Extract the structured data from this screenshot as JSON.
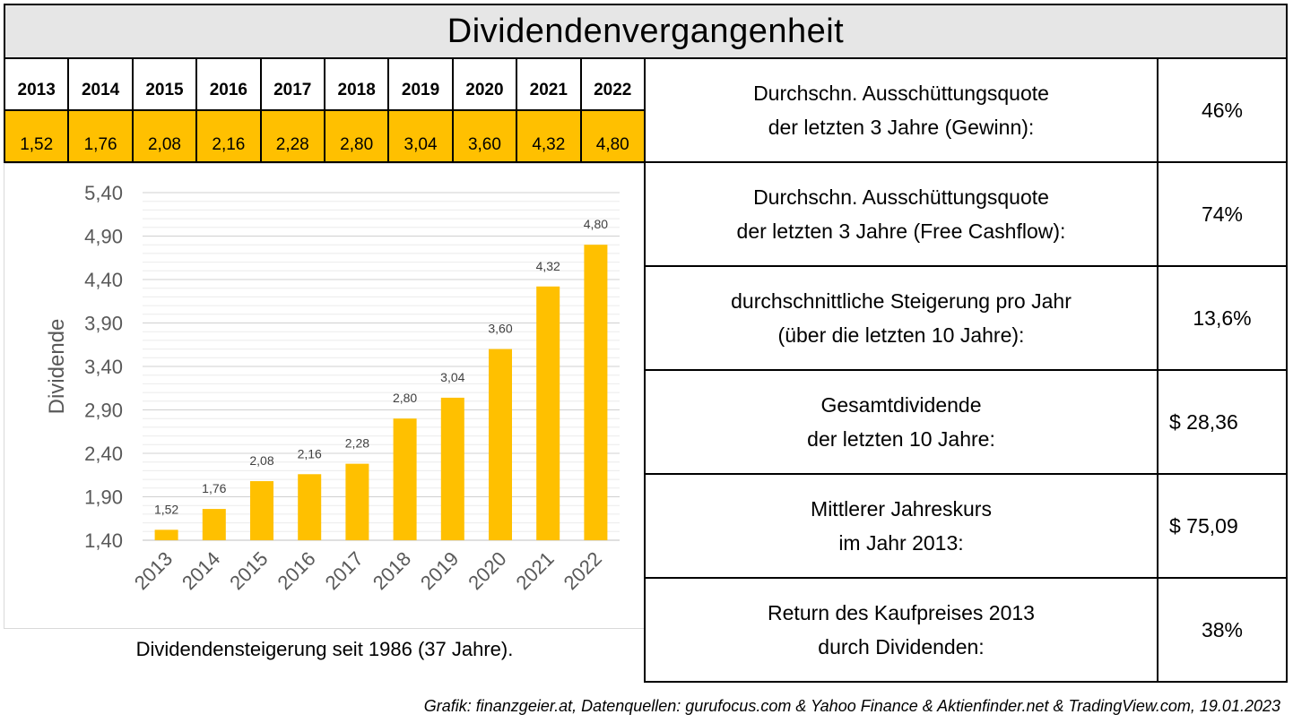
{
  "title": "Dividendenvergangenheit",
  "years_table": {
    "years": [
      "2013",
      "2014",
      "2015",
      "2016",
      "2017",
      "2018",
      "2019",
      "2020",
      "2021",
      "2022"
    ],
    "values": [
      "1,52",
      "1,76",
      "2,08",
      "2,16",
      "2,28",
      "2,80",
      "3,04",
      "3,60",
      "4,32",
      "4,80"
    ]
  },
  "chart_data": {
    "type": "bar",
    "categories": [
      "2013",
      "2014",
      "2015",
      "2016",
      "2017",
      "2018",
      "2019",
      "2020",
      "2021",
      "2022"
    ],
    "values": [
      1.52,
      1.76,
      2.08,
      2.16,
      2.28,
      2.8,
      3.04,
      3.6,
      4.32,
      4.8
    ],
    "data_labels": [
      "1,52",
      "1,76",
      "2,08",
      "2,16",
      "2,28",
      "2,80",
      "3,04",
      "3,60",
      "4,32",
      "4,80"
    ],
    "ylabel": "Dividende",
    "ylim": [
      1.4,
      5.4
    ],
    "yticks": [
      "1,40",
      "1,90",
      "2,40",
      "2,90",
      "3,40",
      "3,90",
      "4,40",
      "4,90",
      "5,40"
    ],
    "grid": true,
    "bar_color": "#ffc000"
  },
  "caption": "Dividendensteigerung seit 1986 (37 Jahre).",
  "metrics": [
    {
      "label": "Durchschn. Ausschüttungsquote\nder letzten 3 Jahre (Gewinn):",
      "value": "46%"
    },
    {
      "label": "Durchschn. Ausschüttungsquote\nder letzten 3 Jahre (Free Cashflow):",
      "value": "74%"
    },
    {
      "label": "durchschnittliche Steigerung pro Jahr\n(über die letzten 10 Jahre):",
      "value": "13,6%"
    },
    {
      "label": "Gesamtdividende\nder letzten 10 Jahre:",
      "value": "$ 28,36"
    },
    {
      "label": "Mittlerer Jahreskurs\nim Jahr 2013:",
      "value": "$ 75,09"
    },
    {
      "label": "Return des Kaufpreises 2013\ndurch Dividenden:",
      "value": "38%"
    }
  ],
  "source": "Grafik: finanzgeier.at, Datenquellen: gurufocus.com & Yahoo Finance & Aktienfinder.net & TradingView.com, 19.01.2023"
}
